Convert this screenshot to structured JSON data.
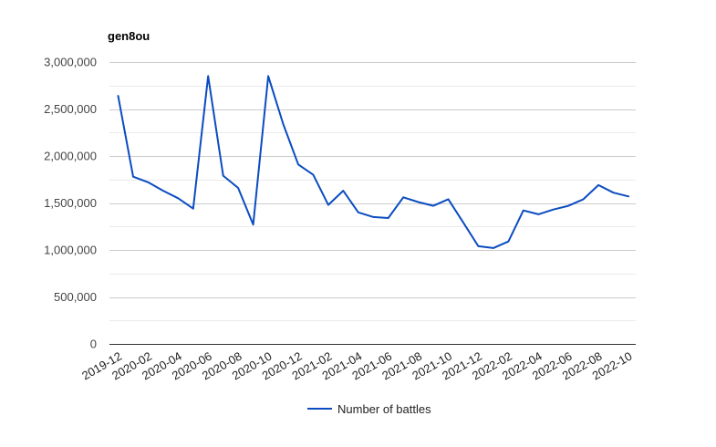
{
  "chart_data": {
    "type": "line",
    "title": "gen8ou",
    "xlabel": "",
    "ylabel": "",
    "ylim": [
      0,
      3000000
    ],
    "y_ticks": [
      "0",
      "500,000",
      "1,000,000",
      "1,500,000",
      "2,000,000",
      "2,500,000",
      "3,000,000"
    ],
    "y_tick_values": [
      0,
      500000,
      1000000,
      1500000,
      2000000,
      2500000,
      3000000
    ],
    "grid": true,
    "legend_position": "bottom",
    "x_tick_labels": [
      "2019-12",
      "2020-02",
      "2020-04",
      "2020-06",
      "2020-08",
      "2020-10",
      "2020-12",
      "2021-02",
      "2021-04",
      "2021-06",
      "2021-08",
      "2021-10",
      "2021-12",
      "2022-02",
      "2022-04",
      "2022-06",
      "2022-08",
      "2022-10"
    ],
    "categories": [
      "2019-12",
      "2020-01",
      "2020-02",
      "2020-03",
      "2020-04",
      "2020-05",
      "2020-06",
      "2020-07",
      "2020-08",
      "2020-09",
      "2020-10",
      "2020-11",
      "2020-12",
      "2021-01",
      "2021-02",
      "2021-03",
      "2021-04",
      "2021-05",
      "2021-06",
      "2021-07",
      "2021-08",
      "2021-09",
      "2021-10",
      "2021-11",
      "2021-12",
      "2022-01",
      "2022-02",
      "2022-03",
      "2022-04",
      "2022-05",
      "2022-06",
      "2022-07",
      "2022-08",
      "2022-09",
      "2022-10"
    ],
    "series": [
      {
        "name": "Number of battles",
        "color": "#0b4cc1",
        "values": [
          2640000,
          1780000,
          1720000,
          1630000,
          1550000,
          1440000,
          2850000,
          1790000,
          1660000,
          1270000,
          2850000,
          2340000,
          1910000,
          1800000,
          1480000,
          1630000,
          1400000,
          1350000,
          1340000,
          1560000,
          1510000,
          1470000,
          1540000,
          1290000,
          1040000,
          1020000,
          1090000,
          1420000,
          1380000,
          1430000,
          1470000,
          1540000,
          1690000,
          1610000,
          1570000
        ]
      }
    ]
  }
}
